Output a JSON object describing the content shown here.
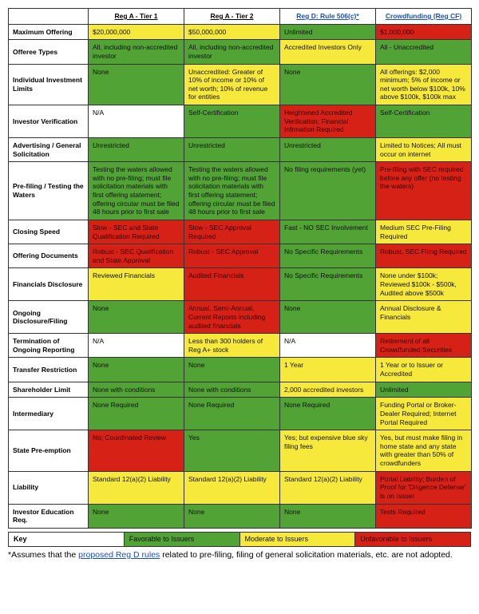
{
  "colors": {
    "favorable": "#52a336",
    "moderate": "#f7e93c",
    "unfavorable": "#d62216",
    "border": "#333333",
    "link": "#1a4fbf",
    "background": "#ffffff"
  },
  "typography": {
    "cell_fontsize_pt": 6.4,
    "header_bold": true,
    "font_family": "Arial"
  },
  "columns": [
    {
      "label": "Reg A - Tier 1",
      "underline": true
    },
    {
      "label": "Reg A - Tier 2",
      "underline": true
    },
    {
      "label": "Reg D: Rule 506(c)*",
      "link": true
    },
    {
      "label": "Crowdfunding (Reg CF)",
      "link": true
    }
  ],
  "rows": [
    {
      "label": "Maximum Offering",
      "cells": [
        {
          "text": "$20,000,000",
          "color": "yellow"
        },
        {
          "text": "$50,000,000",
          "color": "yellow"
        },
        {
          "text": "Unlimited",
          "color": "green"
        },
        {
          "text": "$1,000,000",
          "color": "red"
        }
      ]
    },
    {
      "label": "Offeree Types",
      "cells": [
        {
          "text": "All, including non-accredited investor",
          "color": "green"
        },
        {
          "text": "All, including non-accredited investor",
          "color": "green"
        },
        {
          "text": "Accredited Investors Only",
          "color": "yellow"
        },
        {
          "text": "All - Unaccredited",
          "color": "green"
        }
      ]
    },
    {
      "label": "Individual Investment Limits",
      "cells": [
        {
          "text": "None",
          "color": "green"
        },
        {
          "text": "Unaccredited: Greater of 10% of income or 10% of net worth; 10% of revenue for entities",
          "color": "yellow"
        },
        {
          "text": "None",
          "color": "green"
        },
        {
          "text": "All offerings: $2,000 minimum; 5% of income or net worth below $100k, 10% above $100k, $100k max",
          "color": "yellow"
        }
      ]
    },
    {
      "label": "Investor Verification",
      "cells": [
        {
          "text": "N/A",
          "color": "blank"
        },
        {
          "text": "Self-Certification",
          "color": "green"
        },
        {
          "text": "Heightened Accredited Verification; Financial Infrmation Required",
          "color": "red"
        },
        {
          "text": "Self-Certification",
          "color": "green"
        }
      ]
    },
    {
      "label": "Advertising / General Solicitation",
      "cells": [
        {
          "text": "Unrestricted",
          "color": "green"
        },
        {
          "text": "Unrestricted",
          "color": "green"
        },
        {
          "text": "Unrestricted",
          "color": "green"
        },
        {
          "text": "Limited to Notices; All must occur on internet",
          "color": "yellow"
        }
      ]
    },
    {
      "label": "Pre-filing / Testing the Waters",
      "cells": [
        {
          "text": "Testing the waters allowed with no pre-filing;  must file solicitation materials with first offering statement; offering circular must be filed 48 hours prior to first sale",
          "color": "green"
        },
        {
          "text": "Testing the waters allowed with no pre-filing;  must file solicitation materials with first offering statement; offering circular must be filed 48 hours prior to first sale",
          "color": "green"
        },
        {
          "text": "No filing requirements (yet)",
          "color": "green"
        },
        {
          "text": "Pre-filing with SEC required before any offer (no testing the waters)",
          "color": "red"
        }
      ]
    },
    {
      "label": "Closing Speed",
      "cells": [
        {
          "text": "Slow - SEC and State Qualification Required",
          "color": "red"
        },
        {
          "text": "Slow - SEC Approval Required",
          "color": "red"
        },
        {
          "text": "Fast - NO SEC Involvement",
          "color": "green"
        },
        {
          "text": "Medium SEC Pre-Filing Required",
          "color": "yellow"
        }
      ]
    },
    {
      "label": "Offering Documents",
      "cells": [
        {
          "text": "Robust - SEC Qualification and State Approval",
          "color": "red"
        },
        {
          "text": "Robust - SEC Approval",
          "color": "red"
        },
        {
          "text": "No Specific Requirements",
          "color": "green"
        },
        {
          "text": "Robust, SEC Filing Required",
          "color": "red"
        }
      ]
    },
    {
      "label": "Financials Disclosure",
      "cells": [
        {
          "text": "Reviewed Financials",
          "color": "yellow"
        },
        {
          "text": "Audited Financials",
          "color": "red"
        },
        {
          "text": "No Specific Requirements",
          "color": "green"
        },
        {
          "text": "None under $100k; Reviewed $100k - $500k, Audited above $500k",
          "color": "yellow"
        }
      ]
    },
    {
      "label": "Ongoing Disclosure/Filing",
      "cells": [
        {
          "text": "None",
          "color": "green"
        },
        {
          "text": "Annual, Semi-Annual, Current Reports including audited financials",
          "color": "red"
        },
        {
          "text": "None",
          "color": "green"
        },
        {
          "text": "Annual Disclosure & Financials",
          "color": "yellow"
        }
      ]
    },
    {
      "label": "Termination of Ongoing Reporting",
      "cells": [
        {
          "text": "N/A",
          "color": "blank"
        },
        {
          "text": "Less than 300 holders of Reg A+ stock",
          "color": "yellow"
        },
        {
          "text": "N/A",
          "color": "blank"
        },
        {
          "text": "Retirement of all Crowdfunded Securities",
          "color": "red"
        }
      ]
    },
    {
      "label": "Transfer Restriction",
      "cells": [
        {
          "text": "None",
          "color": "green"
        },
        {
          "text": "None",
          "color": "green"
        },
        {
          "text": "1 Year",
          "color": "yellow"
        },
        {
          "text": "1 Year or to Issuer or Accredited",
          "color": "yellow"
        }
      ]
    },
    {
      "label": "Shareholder Limit",
      "cells": [
        {
          "text": "None with conditions",
          "color": "green"
        },
        {
          "text": "None with conditions",
          "color": "green"
        },
        {
          "text": "2,000 accredited investors",
          "color": "yellow"
        },
        {
          "text": "Unlimited",
          "color": "green"
        }
      ]
    },
    {
      "label": "Intermediary",
      "cells": [
        {
          "text": "None Required",
          "color": "green"
        },
        {
          "text": "None Required",
          "color": "green"
        },
        {
          "text": "None Required",
          "color": "green"
        },
        {
          "text": "Funding Portal or Broker-Dealer Required; Internet Portal Required",
          "color": "yellow"
        }
      ]
    },
    {
      "label": "State Pre-emption",
      "cells": [
        {
          "text": "No; Coordinated Review",
          "color": "red"
        },
        {
          "text": "Yes",
          "color": "green"
        },
        {
          "text": "Yes; but expensive blue sky filing fees",
          "color": "yellow"
        },
        {
          "text": "Yes, but must make filing in home state and any state with greater than 50% of crowdfunders",
          "color": "yellow"
        }
      ]
    },
    {
      "label": "Liability",
      "cells": [
        {
          "text": "Standard 12(a)(2) Liability",
          "color": "yellow"
        },
        {
          "text": "Standard 12(a)(2) Liability",
          "color": "yellow"
        },
        {
          "text": "Standard 12(a)(2) Liability",
          "color": "yellow"
        },
        {
          "text": "Portal Liability; Burden of Proof for 'Diligence Defense' is on Issuer",
          "color": "red"
        }
      ]
    },
    {
      "label": "Investor Education Req.",
      "cells": [
        {
          "text": "None",
          "color": "green"
        },
        {
          "text": "None",
          "color": "green"
        },
        {
          "text": "None",
          "color": "green"
        },
        {
          "text": "Tests Required",
          "color": "red"
        }
      ]
    }
  ],
  "legend": {
    "key": "Key",
    "items": [
      {
        "label": "Favorable to Issuers",
        "color": "green"
      },
      {
        "label": "Moderate to Issuers",
        "color": "yellow"
      },
      {
        "label": "Unfavorable to Issuers",
        "color": "red"
      }
    ]
  },
  "footnote_pre": "*Assumes that the ",
  "footnote_link": "proposed Reg D rules",
  "footnote_post": " related to pre-filing, filing of general solicitation materials, etc. are not adopted."
}
